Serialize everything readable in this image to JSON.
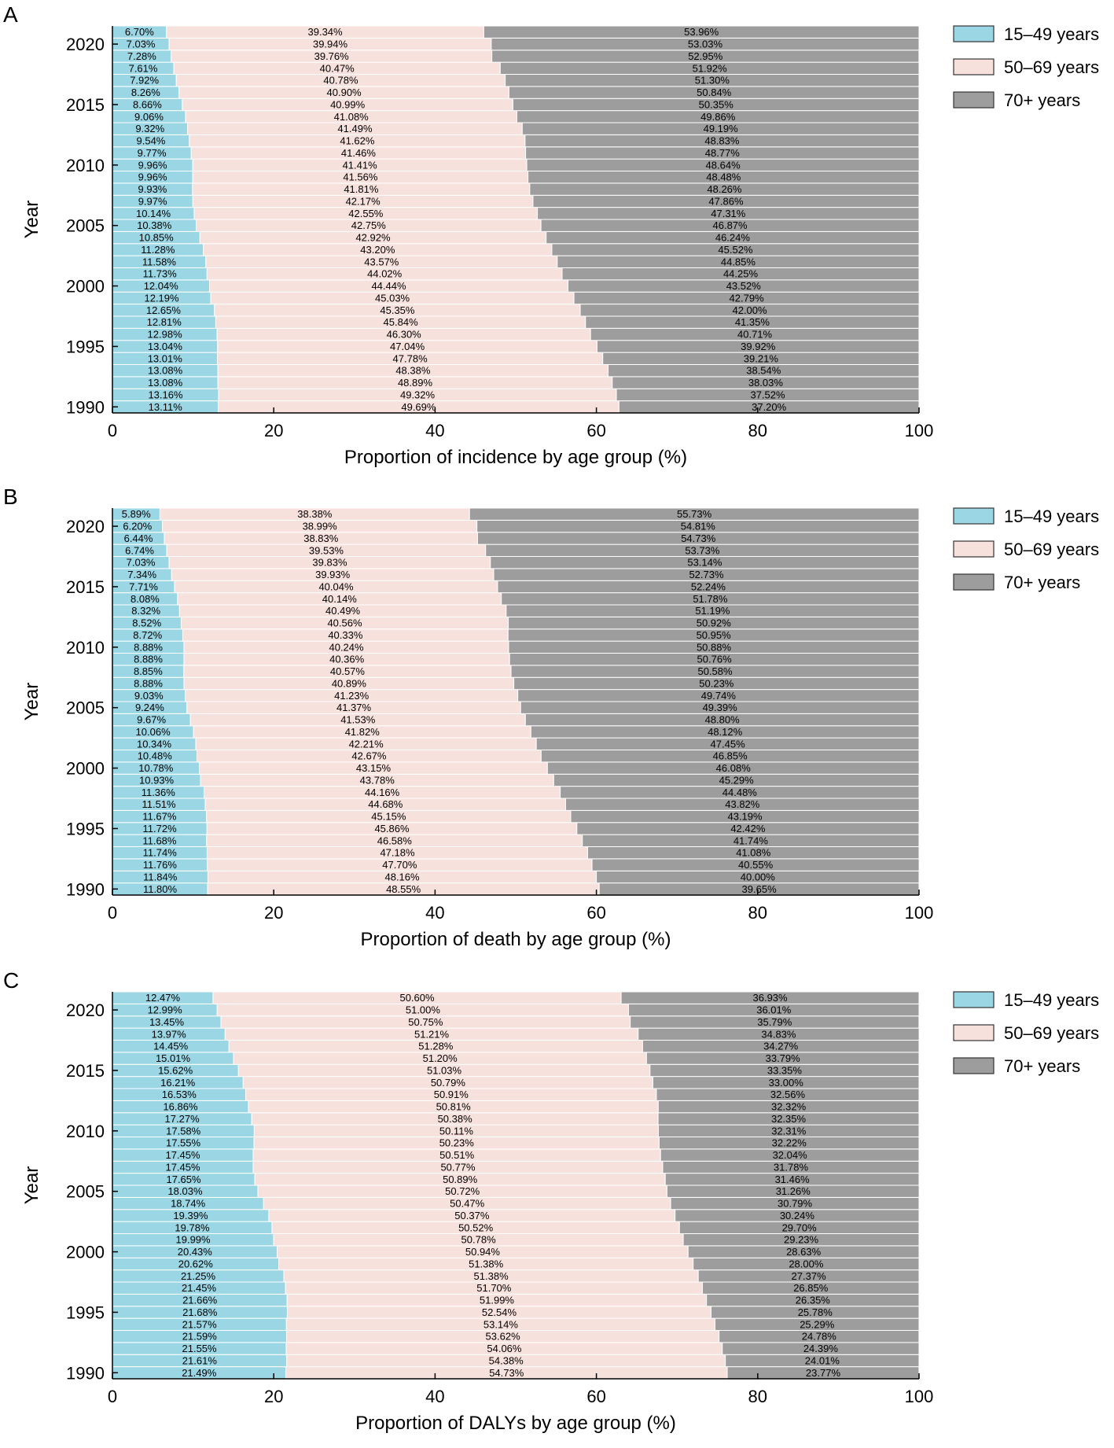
{
  "colors": {
    "age_15_49": "#9bd6e4",
    "age_50_69": "#f6e1dc",
    "age_70_plus": "#9d9d9d",
    "axis": "#000000",
    "bar_separator": "#ffffff"
  },
  "legend": [
    "15–49 years",
    "50–69 years",
    "70+ years"
  ],
  "chart_data": [
    {
      "panel": "A",
      "type": "bar",
      "orientation": "horizontal",
      "stacked": true,
      "ylabel": "Year",
      "xlabel": "Proportion of incidence by age group (%)",
      "xlim": [
        0,
        100
      ],
      "x_ticks": [
        "0",
        "20",
        "40",
        "60",
        "80",
        "100"
      ],
      "y_ticks": [
        "1990",
        "1995",
        "2000",
        "2005",
        "2010",
        "2015",
        "2020"
      ],
      "legend_position": "right",
      "categories": [
        "1990",
        "1991",
        "1992",
        "1993",
        "1994",
        "1995",
        "1996",
        "1997",
        "1998",
        "1999",
        "2000",
        "2001",
        "2002",
        "2003",
        "2004",
        "2005",
        "2006",
        "2007",
        "2008",
        "2009",
        "2010",
        "2011",
        "2012",
        "2013",
        "2014",
        "2015",
        "2016",
        "2017",
        "2018",
        "2019",
        "2020",
        "2021"
      ],
      "series": [
        {
          "name": "15–49 years",
          "values": [
            13.11,
            13.16,
            13.08,
            13.08,
            13.01,
            13.04,
            12.98,
            12.81,
            12.65,
            12.19,
            12.04,
            11.73,
            11.58,
            11.28,
            10.85,
            10.38,
            10.14,
            9.97,
            9.93,
            9.96,
            9.96,
            9.77,
            9.54,
            9.32,
            9.06,
            8.66,
            8.26,
            7.92,
            7.61,
            7.28,
            7.03,
            6.7
          ]
        },
        {
          "name": "50–69 years",
          "values": [
            49.69,
            49.32,
            48.89,
            48.38,
            47.78,
            47.04,
            46.3,
            45.84,
            45.35,
            45.03,
            44.44,
            44.02,
            43.57,
            43.2,
            42.92,
            42.75,
            42.55,
            42.17,
            41.81,
            41.56,
            41.41,
            41.46,
            41.62,
            41.49,
            41.08,
            40.99,
            40.9,
            40.78,
            40.47,
            39.76,
            39.94,
            39.34
          ]
        },
        {
          "name": "70+ years",
          "values": [
            37.2,
            37.52,
            38.03,
            38.54,
            39.21,
            39.92,
            40.71,
            41.35,
            42.0,
            42.79,
            43.52,
            44.25,
            44.85,
            45.52,
            46.24,
            46.87,
            47.31,
            47.86,
            48.26,
            48.48,
            48.64,
            48.77,
            48.83,
            49.19,
            49.86,
            50.35,
            50.84,
            51.3,
            51.92,
            52.95,
            53.03,
            53.96
          ]
        }
      ],
      "labels": {
        "15–49 years": [
          "13.11%",
          "13.16%",
          "13.08%",
          "13.08%",
          "13.01%",
          "13.04%",
          "12.98%",
          "12.81%",
          "12.65%",
          "12.19%",
          "12.04%",
          "11.73%",
          "11.58%",
          "11.28%",
          "10.85%",
          "10.38%",
          "10.14%",
          "9.97%",
          "9.93%",
          "9.96%",
          "9.96%",
          "9.77%",
          "9.54%",
          "9.32%",
          "9.06%",
          "8.66%",
          "8.26%",
          "7.92%",
          "7.61%",
          "7.28%",
          "7.03%",
          "6.70%"
        ],
        "50–69 years": [
          "49.69%",
          "49.32%",
          "48.89%",
          "48.38%",
          "47.78%",
          "47.04%",
          "46.30%",
          "45.84%",
          "45.35%",
          "45.03%",
          "44.44%",
          "44.02%",
          "43.57%",
          "43.20%",
          "42.92%",
          "42.75%",
          "42.55%",
          "42.17%",
          "41.81%",
          "41.56%",
          "41.41%",
          "41.46%",
          "41.62%",
          "41.49%",
          "41.08%",
          "40.99%",
          "40.90%",
          "40.78%",
          "40.47%",
          "39.76%",
          "39.94%",
          "39.34%"
        ],
        "70+ years": [
          "37.20%",
          "37.52%",
          "38.03%",
          "38.54%",
          "39.21%",
          "39.92%",
          "40.71%",
          "41.35%",
          "42.00%",
          "42.79%",
          "43.52%",
          "44.25%",
          "44.85%",
          "45.52%",
          "46.24%",
          "46.87%",
          "47.31%",
          "47.86%",
          "48.26%",
          "48.48%",
          "48.64%",
          "48.77%",
          "48.83%",
          "49.19%",
          "49.86%",
          "50.35%",
          "50.84%",
          "51.30%",
          "51.92%",
          "52.95%",
          "53.03%",
          "53.96%"
        ]
      }
    },
    {
      "panel": "B",
      "type": "bar",
      "orientation": "horizontal",
      "stacked": true,
      "ylabel": "Year",
      "xlabel": "Proportion of death by age group (%)",
      "xlim": [
        0,
        100
      ],
      "x_ticks": [
        "0",
        "20",
        "40",
        "60",
        "80",
        "100"
      ],
      "y_ticks": [
        "1990",
        "1995",
        "2000",
        "2005",
        "2010",
        "2015",
        "2020"
      ],
      "legend_position": "right",
      "categories": [
        "1990",
        "1991",
        "1992",
        "1993",
        "1994",
        "1995",
        "1996",
        "1997",
        "1998",
        "1999",
        "2000",
        "2001",
        "2002",
        "2003",
        "2004",
        "2005",
        "2006",
        "2007",
        "2008",
        "2009",
        "2010",
        "2011",
        "2012",
        "2013",
        "2014",
        "2015",
        "2016",
        "2017",
        "2018",
        "2019",
        "2020",
        "2021"
      ],
      "series": [
        {
          "name": "15–49 years",
          "values": [
            11.8,
            11.84,
            11.76,
            11.74,
            11.68,
            11.72,
            11.67,
            11.51,
            11.36,
            10.93,
            10.78,
            10.48,
            10.34,
            10.06,
            9.67,
            9.24,
            9.03,
            8.88,
            8.85,
            8.88,
            8.88,
            8.72,
            8.52,
            8.32,
            8.08,
            7.71,
            7.34,
            7.03,
            6.74,
            6.44,
            6.2,
            5.89
          ]
        },
        {
          "name": "50–69 years",
          "values": [
            48.55,
            48.16,
            47.7,
            47.18,
            46.58,
            45.86,
            45.15,
            44.68,
            44.16,
            43.78,
            43.15,
            42.67,
            42.21,
            41.82,
            41.53,
            41.37,
            41.23,
            40.89,
            40.57,
            40.36,
            40.24,
            40.33,
            40.56,
            40.49,
            40.14,
            40.04,
            39.93,
            39.83,
            39.53,
            38.83,
            38.99,
            38.38
          ]
        },
        {
          "name": "70+ years",
          "values": [
            39.65,
            40.0,
            40.55,
            41.08,
            41.74,
            42.42,
            43.19,
            43.82,
            44.48,
            45.29,
            46.08,
            46.85,
            47.45,
            48.12,
            48.8,
            49.39,
            49.74,
            50.23,
            50.58,
            50.76,
            50.88,
            50.95,
            50.92,
            51.19,
            51.78,
            52.24,
            52.73,
            53.14,
            53.73,
            54.73,
            54.81,
            55.73
          ]
        }
      ],
      "labels": {
        "15–49 years": [
          "11.80%",
          "11.84%",
          "11.76%",
          "11.74%",
          "11.68%",
          "11.72%",
          "11.67%",
          "11.51%",
          "11.36%",
          "10.93%",
          "10.78%",
          "10.48%",
          "10.34%",
          "10.06%",
          "9.67%",
          "9.24%",
          "9.03%",
          "8.88%",
          "8.85%",
          "8.88%",
          "8.88%",
          "8.72%",
          "8.52%",
          "8.32%",
          "8.08%",
          "7.71%",
          "7.34%",
          "7.03%",
          "6.74%",
          "6.44%",
          "6.20%",
          "5.89%"
        ],
        "50–69 years": [
          "48.55%",
          "48.16%",
          "47.70%",
          "47.18%",
          "46.58%",
          "45.86%",
          "45.15%",
          "44.68%",
          "44.16%",
          "43.78%",
          "43.15%",
          "42.67%",
          "42.21%",
          "41.82%",
          "41.53%",
          "41.37%",
          "41.23%",
          "40.89%",
          "40.57%",
          "40.36%",
          "40.24%",
          "40.33%",
          "40.56%",
          "40.49%",
          "40.14%",
          "40.04%",
          "39.93%",
          "39.83%",
          "39.53%",
          "38.83%",
          "38.99%",
          "38.38%"
        ],
        "70+ years": [
          "39.65%",
          "40.00%",
          "40.55%",
          "41.08%",
          "41.74%",
          "42.42%",
          "43.19%",
          "43.82%",
          "44.48%",
          "45.29%",
          "46.08%",
          "46.85%",
          "47.45%",
          "48.12%",
          "48.80%",
          "49.39%",
          "49.74%",
          "50.23%",
          "50.58%",
          "50.76%",
          "50.88%",
          "50.95%",
          "50.92%",
          "51.19%",
          "51.78%",
          "52.24%",
          "52.73%",
          "53.14%",
          "53.73%",
          "54.73%",
          "54.81%",
          "55.73%"
        ]
      }
    },
    {
      "panel": "C",
      "type": "bar",
      "orientation": "horizontal",
      "stacked": true,
      "ylabel": "Year",
      "xlabel": "Proportion of DALYs by age group (%)",
      "xlim": [
        0,
        100
      ],
      "x_ticks": [
        "0",
        "20",
        "40",
        "60",
        "80",
        "100"
      ],
      "y_ticks": [
        "1990",
        "1995",
        "2000",
        "2005",
        "2010",
        "2015",
        "2020"
      ],
      "legend_position": "right",
      "categories": [
        "1990",
        "1991",
        "1992",
        "1993",
        "1994",
        "1995",
        "1996",
        "1997",
        "1998",
        "1999",
        "2000",
        "2001",
        "2002",
        "2003",
        "2004",
        "2005",
        "2006",
        "2007",
        "2008",
        "2009",
        "2010",
        "2011",
        "2012",
        "2013",
        "2014",
        "2015",
        "2016",
        "2017",
        "2018",
        "2019",
        "2020",
        "2021"
      ],
      "series": [
        {
          "name": "15–49 years",
          "values": [
            21.49,
            21.61,
            21.55,
            21.59,
            21.57,
            21.68,
            21.66,
            21.45,
            21.25,
            20.62,
            20.43,
            19.99,
            19.78,
            19.39,
            18.74,
            18.03,
            17.65,
            17.45,
            17.45,
            17.55,
            17.58,
            17.27,
            16.86,
            16.53,
            16.21,
            15.62,
            15.01,
            14.45,
            13.97,
            13.45,
            12.99,
            12.47
          ]
        },
        {
          "name": "50–69 years",
          "values": [
            54.73,
            54.38,
            54.06,
            53.62,
            53.14,
            52.54,
            51.99,
            51.7,
            51.38,
            51.38,
            50.94,
            50.78,
            50.52,
            50.37,
            50.47,
            50.72,
            50.89,
            50.77,
            50.51,
            50.23,
            50.11,
            50.38,
            50.81,
            50.91,
            50.79,
            51.03,
            51.2,
            51.28,
            51.21,
            50.75,
            51.0,
            50.6
          ]
        },
        {
          "name": "70+ years",
          "values": [
            23.77,
            24.01,
            24.39,
            24.78,
            25.29,
            25.78,
            26.35,
            26.85,
            27.37,
            28.0,
            28.63,
            29.23,
            29.7,
            30.24,
            30.79,
            31.26,
            31.46,
            31.78,
            32.04,
            32.22,
            32.31,
            32.35,
            32.32,
            32.56,
            33.0,
            33.35,
            33.79,
            34.27,
            34.83,
            35.79,
            36.01,
            36.93
          ]
        }
      ],
      "labels": {
        "15–49 years": [
          "21.49%",
          "21.61%",
          "21.55%",
          "21.59%",
          "21.57%",
          "21.68%",
          "21.66%",
          "21.45%",
          "21.25%",
          "20.62%",
          "20.43%",
          "19.99%",
          "19.78%",
          "19.39%",
          "18.74%",
          "18.03%",
          "17.65%",
          "17.45%",
          "17.45%",
          "17.55%",
          "17.58%",
          "17.27%",
          "16.86%",
          "16.53%",
          "16.21%",
          "15.62%",
          "15.01%",
          "14.45%",
          "13.97%",
          "13.45%",
          "12.99%",
          "12.47%"
        ],
        "50–69 years": [
          "54.73%",
          "54.38%",
          "54.06%",
          "53.62%",
          "53.14%",
          "52.54%",
          "51.99%",
          "51.70%",
          "51.38%",
          "51.38%",
          "50.94%",
          "50.78%",
          "50.52%",
          "50.37%",
          "50.47%",
          "50.72%",
          "50.89%",
          "50.77%",
          "50.51%",
          "50.23%",
          "50.11%",
          "50.38%",
          "50.81%",
          "50.91%",
          "50.79%",
          "51.03%",
          "51.20%",
          "51.28%",
          "51.21%",
          "50.75%",
          "51.00%",
          "50.60%"
        ],
        "70+ years": [
          "23.77%",
          "24.01%",
          "24.39%",
          "24.78%",
          "25.29%",
          "25.78%",
          "26.35%",
          "26.85%",
          "27.37%",
          "28.00%",
          "28.63%",
          "29.23%",
          "29.70%",
          "30.24%",
          "30.79%",
          "31.26%",
          "31.46%",
          "31.78%",
          "32.04%",
          "32.22%",
          "32.31%",
          "32.35%",
          "32.32%",
          "32.56%",
          "33.00%",
          "33.35%",
          "33.79%",
          "34.27%",
          "34.83%",
          "35.79%",
          "36.01%",
          "36.93%"
        ]
      }
    }
  ]
}
